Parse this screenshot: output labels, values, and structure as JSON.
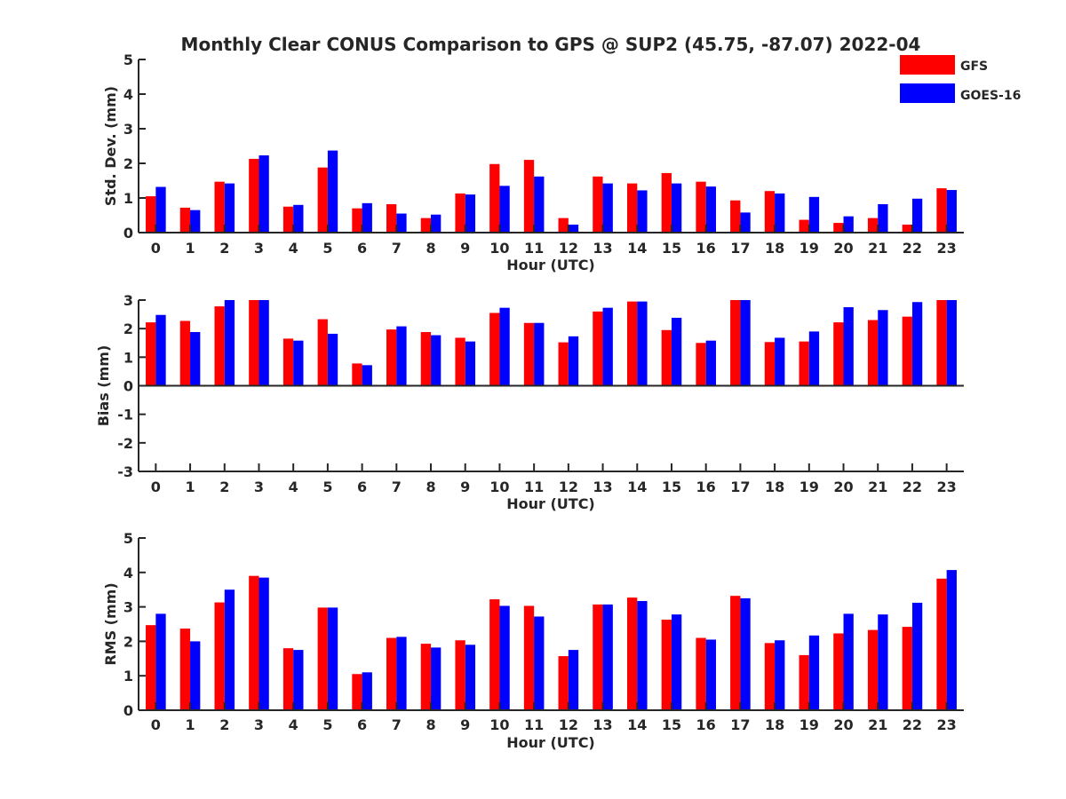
{
  "title": "Monthly Clear CONUS Comparison to GPS @ SUP2 (45.75, -87.07) 2022-04",
  "legend": [
    {
      "name": "GFS",
      "color": "#ff0000"
    },
    {
      "name": "GOES-16",
      "color": "#0000ff"
    }
  ],
  "chart_data": [
    {
      "type": "bar",
      "xlabel": "Hour (UTC)",
      "ylabel": "Std. Dev. (mm)",
      "ylim": [
        0,
        5
      ],
      "yticks": [
        0,
        1,
        2,
        3,
        4,
        5
      ],
      "categories": [
        "0",
        "1",
        "2",
        "3",
        "4",
        "5",
        "6",
        "7",
        "8",
        "9",
        "10",
        "11",
        "12",
        "13",
        "14",
        "15",
        "16",
        "17",
        "18",
        "19",
        "20",
        "21",
        "22",
        "23"
      ],
      "series": [
        {
          "name": "GFS",
          "color": "#ff0000",
          "values": [
            1.05,
            0.72,
            1.47,
            2.13,
            0.75,
            1.88,
            0.7,
            0.82,
            0.42,
            1.13,
            1.98,
            2.1,
            0.42,
            1.62,
            1.42,
            1.72,
            1.47,
            0.93,
            1.2,
            0.37,
            0.28,
            0.42,
            0.23,
            1.28
          ]
        },
        {
          "name": "GOES-16",
          "color": "#0000ff",
          "values": [
            1.32,
            0.65,
            1.42,
            2.23,
            0.8,
            2.37,
            0.85,
            0.55,
            0.52,
            1.1,
            1.35,
            1.62,
            0.23,
            1.42,
            1.22,
            1.42,
            1.33,
            0.58,
            1.13,
            1.03,
            0.47,
            0.82,
            0.98,
            1.23
          ]
        }
      ]
    },
    {
      "type": "bar",
      "xlabel": "Hour (UTC)",
      "ylabel": "Bias (mm)",
      "ylim": [
        -3,
        3
      ],
      "yticks": [
        -3,
        -2,
        -1,
        0,
        1,
        2,
        3
      ],
      "categories": [
        "0",
        "1",
        "2",
        "3",
        "4",
        "5",
        "6",
        "7",
        "8",
        "9",
        "10",
        "11",
        "12",
        "13",
        "14",
        "15",
        "16",
        "17",
        "18",
        "19",
        "20",
        "21",
        "22",
        "23"
      ],
      "series": [
        {
          "name": "GFS",
          "color": "#ff0000",
          "values": [
            2.22,
            2.27,
            2.78,
            3.0,
            1.65,
            2.33,
            0.78,
            1.97,
            1.88,
            1.68,
            2.55,
            2.2,
            1.52,
            2.6,
            2.95,
            1.95,
            1.5,
            3.0,
            1.53,
            1.55,
            2.22,
            2.3,
            2.42,
            3.0
          ]
        },
        {
          "name": "GOES-16",
          "color": "#0000ff",
          "values": [
            2.48,
            1.88,
            3.0,
            3.0,
            1.58,
            1.82,
            0.72,
            2.08,
            1.77,
            1.55,
            2.73,
            2.2,
            1.73,
            2.73,
            2.95,
            2.38,
            1.58,
            3.0,
            1.68,
            1.9,
            2.75,
            2.65,
            2.93,
            3.0
          ]
        }
      ]
    },
    {
      "type": "bar",
      "xlabel": "Hour (UTC)",
      "ylabel": "RMS (mm)",
      "ylim": [
        0,
        5
      ],
      "yticks": [
        0,
        1,
        2,
        3,
        4,
        5
      ],
      "categories": [
        "0",
        "1",
        "2",
        "3",
        "4",
        "5",
        "6",
        "7",
        "8",
        "9",
        "10",
        "11",
        "12",
        "13",
        "14",
        "15",
        "16",
        "17",
        "18",
        "19",
        "20",
        "21",
        "22",
        "23"
      ],
      "series": [
        {
          "name": "GFS",
          "color": "#ff0000",
          "values": [
            2.47,
            2.37,
            3.13,
            3.9,
            1.8,
            2.98,
            1.05,
            2.1,
            1.93,
            2.03,
            3.22,
            3.03,
            1.57,
            3.07,
            3.27,
            2.63,
            2.1,
            3.32,
            1.95,
            1.6,
            2.23,
            2.33,
            2.42,
            3.82
          ]
        },
        {
          "name": "GOES-16",
          "color": "#0000ff",
          "values": [
            2.8,
            2.0,
            3.5,
            3.85,
            1.75,
            2.98,
            1.1,
            2.13,
            1.82,
            1.9,
            3.03,
            2.72,
            1.75,
            3.07,
            3.17,
            2.78,
            2.05,
            3.25,
            2.03,
            2.17,
            2.8,
            2.78,
            3.12,
            4.07
          ]
        }
      ]
    }
  ]
}
